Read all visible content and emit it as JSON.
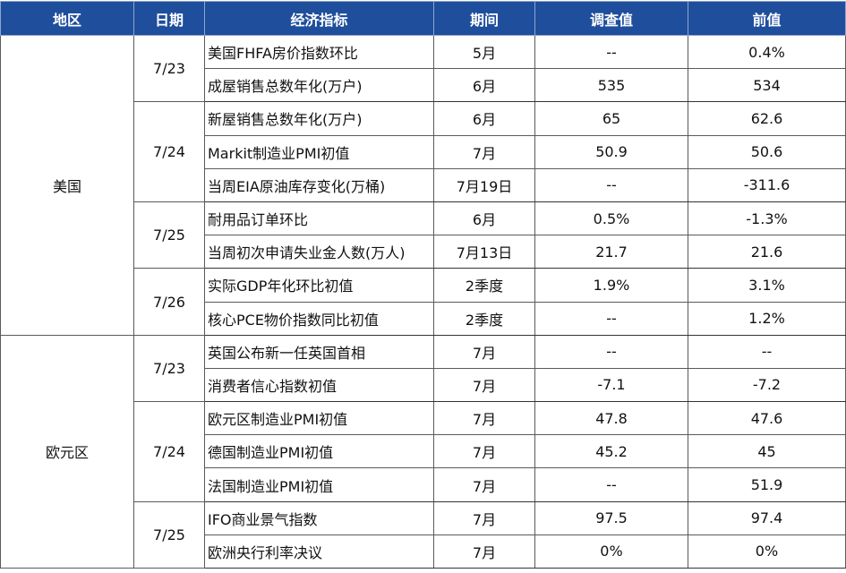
{
  "headers": {
    "region": "地区",
    "date": "日期",
    "indicator": "经济指标",
    "period": "期间",
    "survey": "调查值",
    "previous": "前值"
  },
  "regions": [
    {
      "name": "美国",
      "dates": [
        {
          "date": "7/23",
          "rows": [
            {
              "indicator": "美国FHFA房价指数环比",
              "period": "5月",
              "survey": "--",
              "previous": "0.4%"
            },
            {
              "indicator": "成屋销售总数年化(万户)",
              "period": "6月",
              "survey": "535",
              "previous": "534"
            }
          ]
        },
        {
          "date": "7/24",
          "rows": [
            {
              "indicator": "新屋销售总数年化(万户)",
              "period": "6月",
              "survey": "65",
              "previous": "62.6"
            },
            {
              "indicator": "Markit制造业PMI初值",
              "period": "7月",
              "survey": "50.9",
              "previous": "50.6"
            },
            {
              "indicator": "当周EIA原油库存变化(万桶)",
              "period": "7月19日",
              "survey": "--",
              "previous": "-311.6"
            }
          ]
        },
        {
          "date": "7/25",
          "rows": [
            {
              "indicator": "耐用品订单环比",
              "period": "6月",
              "survey": "0.5%",
              "previous": "-1.3%"
            },
            {
              "indicator": "当周初次申请失业金人数(万人)",
              "period": "7月13日",
              "survey": "21.7",
              "previous": "21.6"
            }
          ]
        },
        {
          "date": "7/26",
          "rows": [
            {
              "indicator": "实际GDP年化环比初值",
              "period": "2季度",
              "survey": "1.9%",
              "previous": "3.1%"
            },
            {
              "indicator": "核心PCE物价指数同比初值",
              "period": "2季度",
              "survey": "--",
              "previous": "1.2%"
            }
          ]
        }
      ]
    },
    {
      "name": "欧元区",
      "dates": [
        {
          "date": "7/23",
          "rows": [
            {
              "indicator": "英国公布新一任英国首相",
              "period": "7月",
              "survey": "--",
              "previous": "--"
            },
            {
              "indicator": "消费者信心指数初值",
              "period": "7月",
              "survey": "-7.1",
              "previous": "-7.2"
            }
          ]
        },
        {
          "date": "7/24",
          "rows": [
            {
              "indicator": "欧元区制造业PMI初值",
              "period": "7月",
              "survey": "47.8",
              "previous": "47.6"
            },
            {
              "indicator": "德国制造业PMI初值",
              "period": "7月",
              "survey": "45.2",
              "previous": "45"
            },
            {
              "indicator": "法国制造业PMI初值",
              "period": "7月",
              "survey": "--",
              "previous": "51.9"
            }
          ]
        },
        {
          "date": "7/25",
          "rows": [
            {
              "indicator": "IFO商业景气指数",
              "period": "7月",
              "survey": "97.5",
              "previous": "97.4"
            },
            {
              "indicator": "欧洲央行利率决议",
              "period": "7月",
              "survey": "0%",
              "previous": "0%"
            }
          ]
        }
      ]
    }
  ]
}
